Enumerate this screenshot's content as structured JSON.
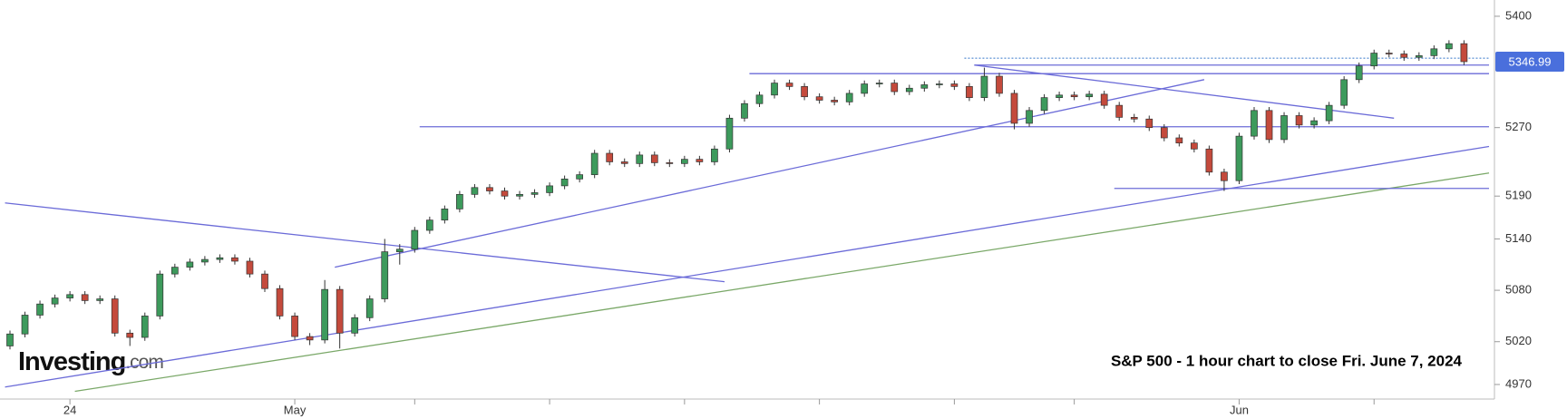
{
  "chart_data": {
    "type": "candlestick",
    "annotation": "S&P 500 - 1 hour chart to close Fri. June 7, 2024",
    "watermark": "Investing",
    "watermark_suffix": ".com",
    "categories": [
      null,
      null,
      null,
      null,
      "24",
      null,
      null,
      null,
      null,
      null,
      null,
      null,
      null,
      null,
      null,
      null,
      null,
      null,
      null,
      "May",
      null,
      null,
      null,
      null,
      null,
      null,
      null,
      null,
      null,
      null,
      null,
      null,
      null,
      null,
      null,
      null,
      null,
      null,
      null,
      null,
      null,
      null,
      null,
      null,
      null,
      null,
      null,
      null,
      null,
      null,
      null,
      null,
      null,
      null,
      null,
      null,
      null,
      null,
      null,
      null,
      null,
      null,
      null,
      null,
      null,
      null,
      null,
      null,
      null,
      null,
      null,
      null,
      null,
      null,
      null,
      null,
      null,
      null,
      null,
      null,
      null,
      null,
      "Jun",
      null,
      null,
      null,
      null,
      null,
      null,
      null,
      null,
      null,
      null,
      null,
      null,
      null,
      null,
      null
    ],
    "xticks": [
      4,
      19,
      27,
      36,
      45,
      54,
      63,
      71,
      82,
      91
    ],
    "open": [
      5015,
      5029,
      5051,
      5064,
      5071,
      5075,
      5068,
      5070,
      5030,
      5025,
      5050,
      5099,
      5107,
      5113,
      5116,
      5118,
      5114,
      5099,
      5082,
      5050,
      5026,
      5022,
      5081,
      5030,
      5048,
      5070,
      5125,
      5128,
      5150,
      5162,
      5175,
      5192,
      5200,
      5196,
      5190,
      5192,
      5194,
      5202,
      5210,
      5215,
      5240,
      5230,
      5228,
      5238,
      5229,
      5228,
      5233,
      5230,
      5245,
      5281,
      5298,
      5308,
      5322,
      5318,
      5306,
      5302,
      5300,
      5310,
      5321,
      5322,
      5312,
      5316,
      5320,
      5321,
      5318,
      5305,
      5330,
      5310,
      5275,
      5290,
      5305,
      5308,
      5306,
      5309,
      5296,
      5282,
      5280,
      5270,
      5258,
      5252,
      5245,
      5218,
      5208,
      5260,
      5290,
      5256,
      5284,
      5273,
      5278,
      5296,
      5326,
      5342,
      5357,
      5356,
      5352,
      5354,
      5362,
      5368
    ],
    "high": [
      5033,
      5055,
      5068,
      5075,
      5079,
      5079,
      5074,
      5074,
      5034,
      5054,
      5103,
      5111,
      5117,
      5120,
      5122,
      5122,
      5118,
      5103,
      5086,
      5054,
      5030,
      5092,
      5085,
      5052,
      5074,
      5140,
      5134,
      5154,
      5166,
      5179,
      5196,
      5204,
      5204,
      5200,
      5196,
      5198,
      5206,
      5214,
      5219,
      5244,
      5244,
      5234,
      5242,
      5242,
      5233,
      5237,
      5237,
      5249,
      5285,
      5302,
      5312,
      5326,
      5326,
      5322,
      5310,
      5306,
      5314,
      5325,
      5326,
      5326,
      5320,
      5324,
      5325,
      5325,
      5322,
      5340,
      5334,
      5314,
      5294,
      5309,
      5312,
      5312,
      5313,
      5313,
      5300,
      5286,
      5284,
      5274,
      5262,
      5256,
      5249,
      5222,
      5264,
      5294,
      5294,
      5288,
      5288,
      5282,
      5300,
      5330,
      5346,
      5361,
      5361,
      5360,
      5358,
      5366,
      5372,
      5372
    ],
    "low": [
      5011,
      5025,
      5047,
      5060,
      5067,
      5064,
      5064,
      5026,
      5015,
      5021,
      5046,
      5095,
      5103,
      5109,
      5112,
      5110,
      5095,
      5078,
      5046,
      5022,
      5016,
      5018,
      5012,
      5026,
      5044,
      5066,
      5110,
      5124,
      5146,
      5158,
      5171,
      5188,
      5192,
      5186,
      5186,
      5188,
      5190,
      5198,
      5206,
      5211,
      5226,
      5224,
      5224,
      5225,
      5224,
      5224,
      5226,
      5226,
      5241,
      5277,
      5294,
      5304,
      5314,
      5302,
      5298,
      5296,
      5296,
      5306,
      5317,
      5308,
      5308,
      5312,
      5316,
      5314,
      5301,
      5301,
      5306,
      5268,
      5271,
      5286,
      5301,
      5302,
      5302,
      5292,
      5278,
      5276,
      5266,
      5254,
      5248,
      5241,
      5214,
      5196,
      5204,
      5256,
      5252,
      5252,
      5269,
      5269,
      5274,
      5292,
      5322,
      5338,
      5352,
      5348,
      5348,
      5350,
      5358,
      5343
    ],
    "close": [
      5029,
      5051,
      5064,
      5071,
      5075,
      5068,
      5070,
      5030,
      5025,
      5050,
      5099,
      5107,
      5113,
      5116,
      5118,
      5114,
      5099,
      5082,
      5050,
      5026,
      5022,
      5081,
      5030,
      5048,
      5070,
      5125,
      5128,
      5150,
      5162,
      5175,
      5192,
      5200,
      5196,
      5190,
      5192,
      5194,
      5202,
      5210,
      5215,
      5240,
      5230,
      5228,
      5238,
      5229,
      5228,
      5233,
      5230,
      5245,
      5281,
      5298,
      5308,
      5322,
      5318,
      5306,
      5302,
      5300,
      5310,
      5321,
      5322,
      5312,
      5316,
      5320,
      5321,
      5318,
      5305,
      5330,
      5310,
      5275,
      5290,
      5305,
      5308,
      5306,
      5309,
      5296,
      5282,
      5280,
      5270,
      5258,
      5252,
      5245,
      5218,
      5208,
      5260,
      5290,
      5256,
      5284,
      5273,
      5278,
      5296,
      5326,
      5342,
      5357,
      5356,
      5352,
      5354,
      5362,
      5368,
      5346.99
    ],
    "up_color": "#3d9a5c",
    "down_color": "#c44a3c",
    "ylim": [
      4953,
      5419
    ],
    "yticks": [
      4970,
      5020,
      5080,
      5140,
      5190,
      5270,
      5400
    ],
    "lines": [
      {
        "x": [
          -0.33,
          47.67
        ],
        "y": [
          5182,
          5090
        ],
        "color": "#6b6bd8"
      },
      {
        "x": [
          21.67,
          79.67
        ],
        "y": [
          5107,
          5326
        ],
        "color": "#6b6bd8"
      },
      {
        "x": [
          -0.33,
          98.67
        ],
        "y": [
          4967,
          5248
        ],
        "color": "#6b6bd8"
      },
      {
        "x": [
          4.33,
          98.67
        ],
        "y": [
          4962,
          5217
        ],
        "color": "#7aa868"
      },
      {
        "x": [
          64.33,
          92.33
        ],
        "y": [
          5343,
          5281
        ],
        "color": "#6b6bd8"
      },
      {
        "x": [
          49.33,
          98.67
        ],
        "y": [
          5333,
          5333
        ],
        "color": "#6b6bd8"
      },
      {
        "x": [
          64.33,
          98.67
        ],
        "y": [
          5343,
          5343
        ],
        "color": "#6b6bd8"
      },
      {
        "x": [
          63.67,
          98.67
        ],
        "y": [
          5351,
          5351
        ],
        "color": "#6b9bd8",
        "dash": true
      },
      {
        "x": [
          27.33,
          98.67
        ],
        "y": [
          5271,
          5271
        ],
        "color": "#6b6bd8"
      },
      {
        "x": [
          73.67,
          98.67
        ],
        "y": [
          5199,
          5199
        ],
        "color": "#6b6bd8"
      }
    ],
    "price_box_color": "#4a6fdc"
  }
}
